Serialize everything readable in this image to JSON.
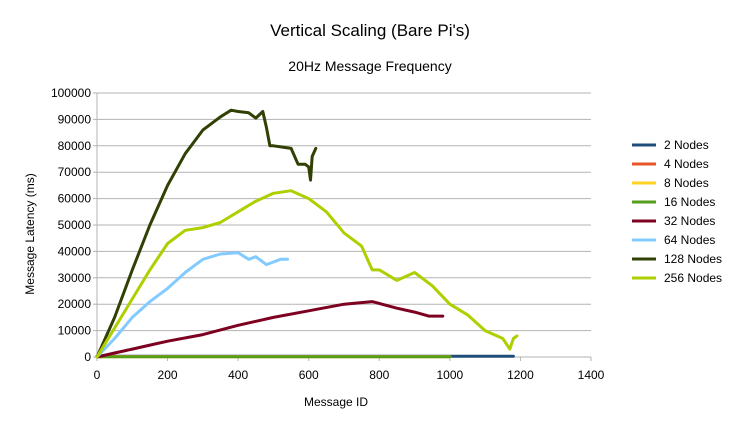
{
  "chart_data": {
    "type": "line",
    "title": "Vertical Scaling (Bare Pi's)",
    "subtitle": "20Hz Message Frequency",
    "xlabel": "Message ID",
    "ylabel": "Message Latency (ms)",
    "xlim": [
      0,
      1400
    ],
    "ylim": [
      0,
      100000
    ],
    "x_ticks": [
      0,
      200,
      400,
      600,
      800,
      1000,
      1200,
      1400
    ],
    "y_ticks": [
      0,
      10000,
      20000,
      30000,
      40000,
      50000,
      60000,
      70000,
      80000,
      90000,
      100000
    ],
    "grid": "horizontal",
    "legend_position": "right",
    "series": [
      {
        "name": "2 Nodes",
        "color": "#1f4e79",
        "x": [
          0,
          1180
        ],
        "y": [
          300,
          300
        ]
      },
      {
        "name": "4 Nodes",
        "color": "#e8562a",
        "x": [
          0,
          1000
        ],
        "y": [
          200,
          200
        ]
      },
      {
        "name": "8 Nodes",
        "color": "#ffd320",
        "x": [
          0,
          1000
        ],
        "y": [
          100,
          100
        ]
      },
      {
        "name": "16 Nodes",
        "color": "#579d1c",
        "x": [
          0,
          1000
        ],
        "y": [
          100,
          100
        ]
      },
      {
        "name": "32 Nodes",
        "color": "#7e0021",
        "x": [
          0,
          50,
          100,
          150,
          200,
          300,
          400,
          500,
          600,
          700,
          780,
          850,
          900,
          940,
          980
        ],
        "y": [
          0,
          1500,
          3000,
          4500,
          6000,
          8500,
          12000,
          15000,
          17500,
          20000,
          21000,
          18500,
          17000,
          15500,
          15500
        ]
      },
      {
        "name": "64 Nodes",
        "color": "#83caff",
        "x": [
          0,
          50,
          100,
          150,
          200,
          250,
          300,
          350,
          400,
          430,
          450,
          480,
          500,
          520,
          540
        ],
        "y": [
          0,
          7000,
          15000,
          21000,
          26000,
          32000,
          37000,
          39000,
          39500,
          37000,
          38000,
          35000,
          36000,
          37000,
          37000
        ]
      },
      {
        "name": "128 Nodes",
        "color": "#314004",
        "x": [
          0,
          50,
          100,
          150,
          200,
          250,
          300,
          350,
          380,
          400,
          430,
          450,
          470,
          480,
          490,
          500,
          550,
          570,
          590,
          600,
          605,
          610,
          620
        ],
        "y": [
          0,
          15000,
          33000,
          50000,
          65000,
          77000,
          86000,
          91000,
          93500,
          93000,
          92500,
          90500,
          93000,
          87000,
          80000,
          80000,
          79000,
          73000,
          73000,
          72000,
          67000,
          76000,
          79000
        ]
      },
      {
        "name": "256 Nodes",
        "color": "#aecf00",
        "x": [
          0,
          50,
          100,
          150,
          200,
          250,
          300,
          350,
          400,
          450,
          500,
          550,
          600,
          650,
          700,
          750,
          780,
          800,
          850,
          900,
          950,
          1000,
          1050,
          1100,
          1150,
          1170,
          1180,
          1190
        ],
        "y": [
          0,
          11000,
          22000,
          33000,
          43000,
          48000,
          49000,
          51000,
          55000,
          59000,
          62000,
          63000,
          60000,
          55000,
          47000,
          42000,
          33000,
          33000,
          29000,
          32000,
          27000,
          20000,
          16000,
          10000,
          7000,
          3000,
          7000,
          8000
        ]
      }
    ]
  }
}
